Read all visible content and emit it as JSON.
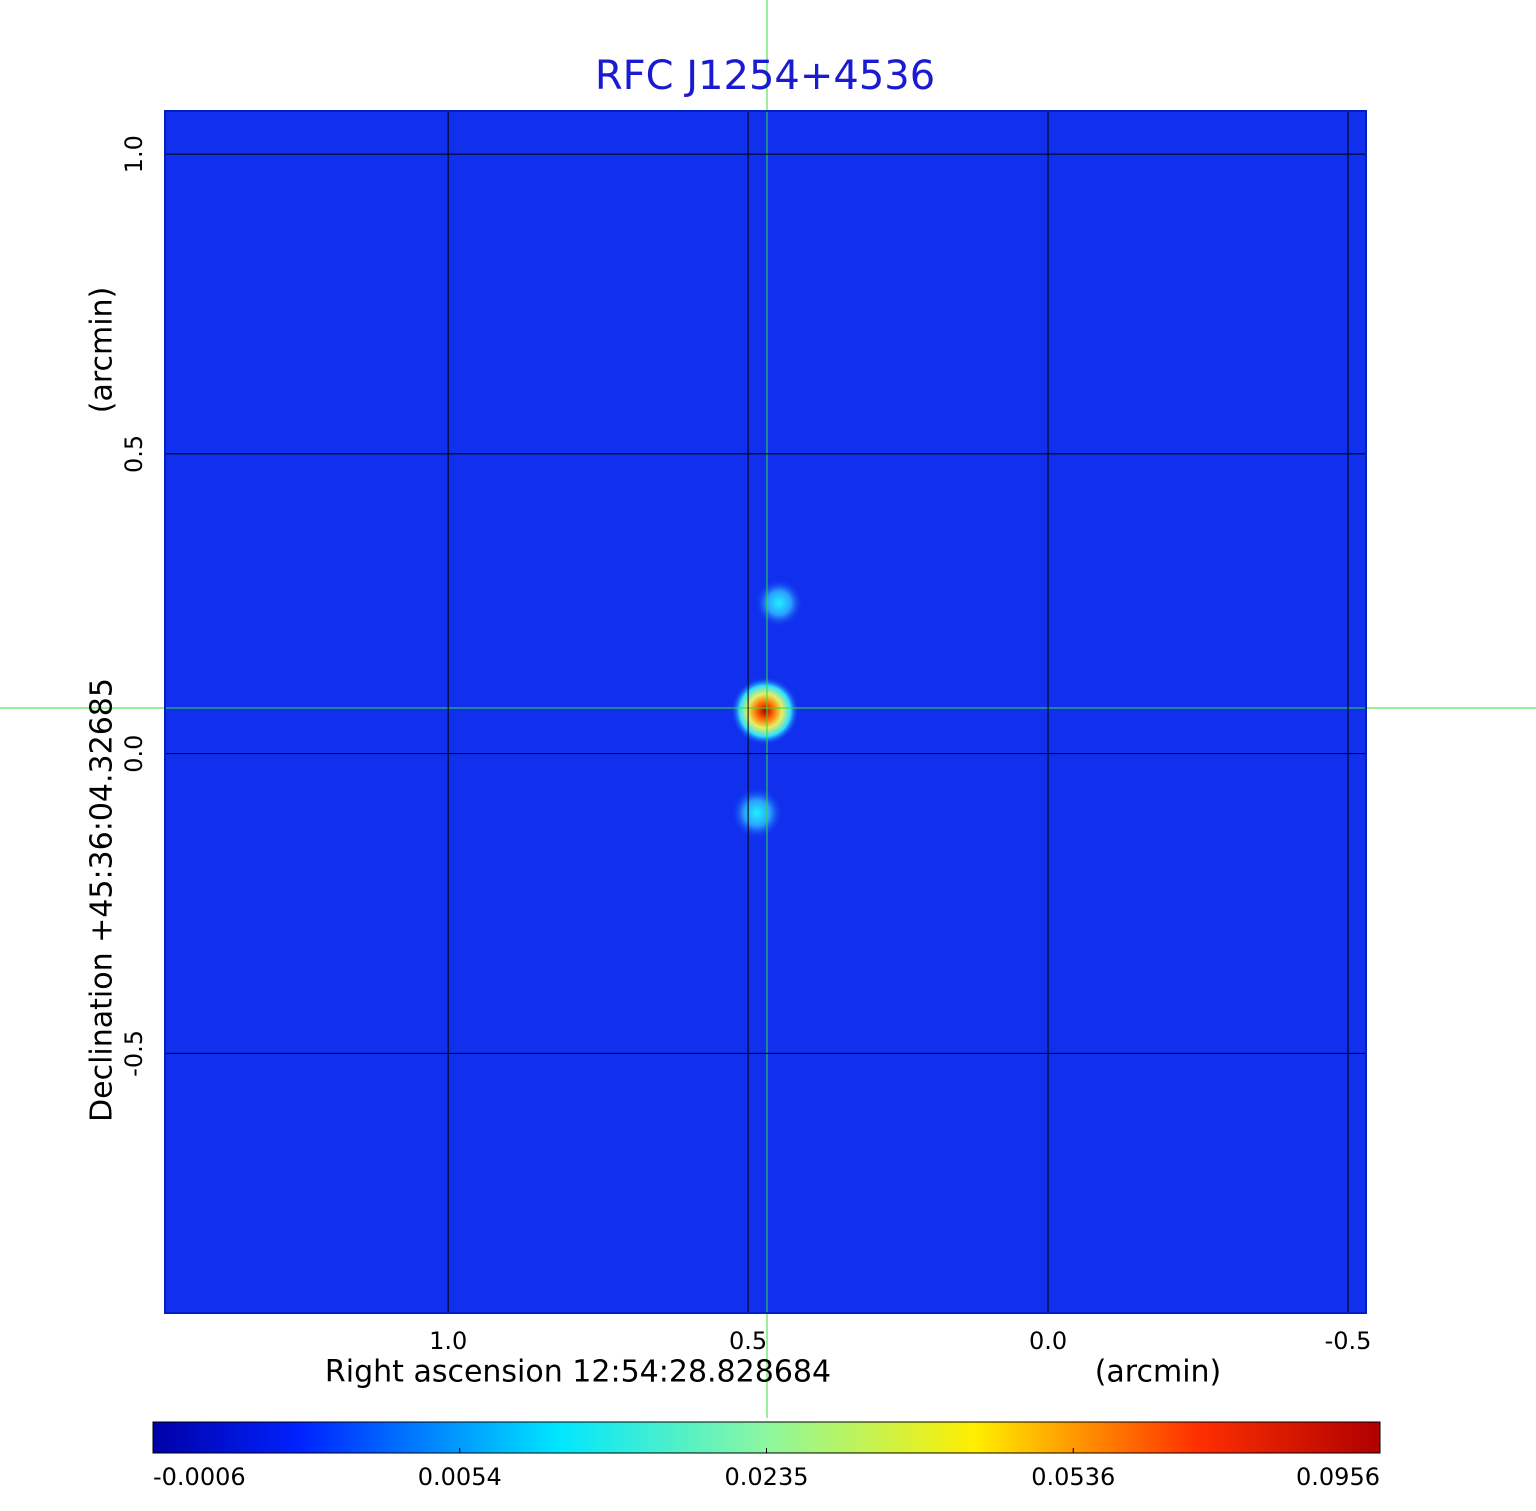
{
  "chart_data": {
    "type": "image",
    "title": "RFC J1254+4536",
    "xlabel": "Right ascension  12:54:28.828684",
    "xunit": "(arcmin)",
    "ylabel": "Declination  +45:36:04.32685",
    "yunit": "(arcmin)",
    "xlim": [
      1.472,
      -0.53
    ],
    "ylim": [
      -0.933,
      1.072
    ],
    "xticks": [
      {
        "value": 1,
        "label": "1.0"
      },
      0.5,
      {
        "value": 0,
        "label": "0.0"
      },
      -0.5
    ],
    "yticks": [
      {
        "value": 1,
        "label": "1.0"
      },
      0.5,
      {
        "value": 0,
        "label": "0.0"
      },
      -0.5
    ],
    "grid": true,
    "colorbar_ticks": [
      -0.0006,
      0.0054,
      0.0235,
      0.0536,
      0.0956
    ]
  }
}
